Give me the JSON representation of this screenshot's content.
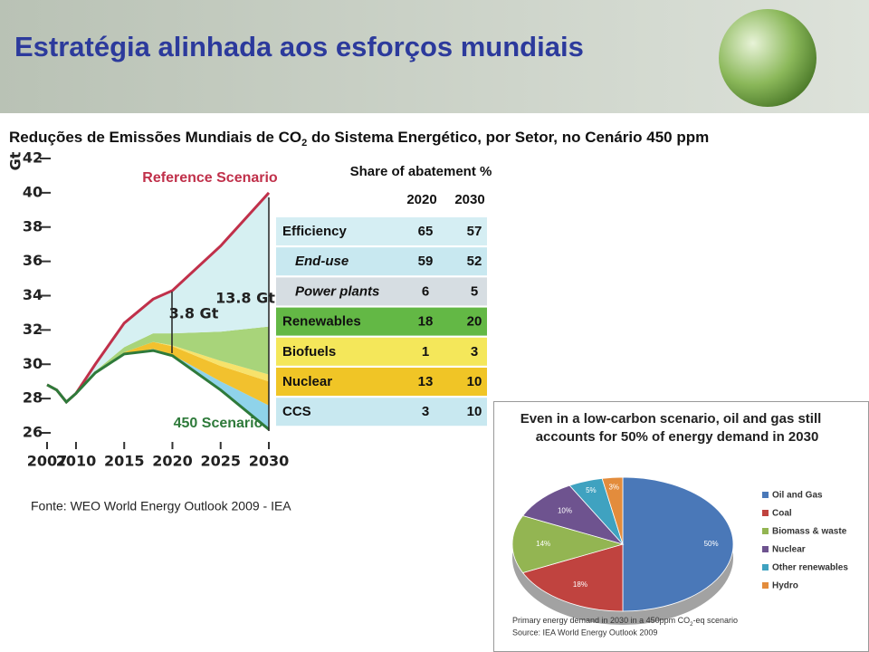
{
  "header": {
    "title": "Estratégia alinhada aos esforços mundiais"
  },
  "subtitle": {
    "parts": [
      "Reduções de Emissões Mundiais de CO",
      "2",
      " do Sistema Energético, por Setor, no Cenário 450 ppm"
    ]
  },
  "source": "Fonte: WEO World Energy Outlook 2009 - IEA",
  "table": {
    "title": "Share of abatement %",
    "columns": [
      "2020",
      "2030"
    ],
    "rows": [
      [
        "Efficiency",
        65,
        57
      ],
      [
        "End-use",
        59,
        52
      ],
      [
        "Power plants",
        6,
        5
      ],
      [
        "Renewables",
        18,
        20
      ],
      [
        "Biofuels",
        1,
        3
      ],
      [
        "Nuclear",
        13,
        10
      ],
      [
        "CCS",
        3,
        10
      ]
    ]
  },
  "chart_data": [
    {
      "type": "area",
      "y_label": "Gt",
      "x": [
        2007,
        2008,
        2009,
        2010,
        2012,
        2015,
        2018,
        2020,
        2025,
        2030
      ],
      "series": [
        {
          "name": "Reference Scenario",
          "color": "#c0304a",
          "values": [
            28.8,
            28.5,
            27.8,
            28.3,
            30.0,
            32.4,
            33.8,
            34.3,
            36.9,
            40.0
          ]
        },
        {
          "name": "450 Scenario",
          "color": "#2e7a3a",
          "values": [
            28.8,
            28.5,
            27.8,
            28.3,
            29.5,
            30.6,
            30.8,
            30.5,
            28.5,
            26.2
          ]
        }
      ],
      "wedges": [
        {
          "color": "#8fd3ea",
          "values": [
            0,
            0,
            0,
            0,
            0,
            0,
            0.1,
            0.05,
            0.5,
            1.4
          ]
        },
        {
          "color": "#f2c12e",
          "values": [
            0,
            0,
            0,
            0,
            0,
            0.1,
            0.4,
            0.5,
            0.9,
            1.4
          ]
        },
        {
          "color": "#f7e26b",
          "values": [
            0,
            0,
            0,
            0,
            0,
            0,
            0,
            0.05,
            0.3,
            0.4
          ]
        },
        {
          "color": "#a8d47a",
          "values": [
            0,
            0,
            0,
            0,
            0.1,
            0.3,
            0.5,
            0.7,
            1.7,
            2.8
          ]
        },
        {
          "color": "#d6f0f2",
          "values": [
            0,
            0,
            0,
            0,
            0.4,
            1.4,
            2.0,
            2.5,
            5.0,
            7.8
          ]
        }
      ],
      "annotations": [
        "3.8 Gt",
        "13.8 Gt"
      ],
      "xlim": [
        2007,
        2030
      ],
      "xticks": [
        2007,
        2010,
        2015,
        2020,
        2025,
        2030
      ],
      "ylim": [
        26,
        42
      ],
      "yticks": [
        26,
        28,
        30,
        32,
        34,
        36,
        38,
        40,
        42
      ]
    },
    {
      "type": "pie",
      "title": [
        "Even in a low-carbon scenario, oil and gas still",
        "accounts for 50% of energy demand in 2030"
      ],
      "categories": [
        "Oil and Gas",
        "Coal",
        "Biomass & waste",
        "Nuclear",
        "Other renewables",
        "Hydro"
      ],
      "values": [
        50,
        18,
        14,
        10,
        5,
        3
      ],
      "value_labels": [
        "50%",
        "18%",
        "14%",
        "10%",
        "5%",
        "3%"
      ],
      "colors": [
        "#4a78b8",
        "#c0433f",
        "#93b552",
        "#6e538f",
        "#3fa2c0",
        "#e38c3c"
      ],
      "note": [
        "Primary energy demand in 2030 in a 450ppm CO",
        "2",
        "-eq scenario"
      ],
      "note_source": "Source: IEA World Energy Outlook 2009"
    }
  ]
}
